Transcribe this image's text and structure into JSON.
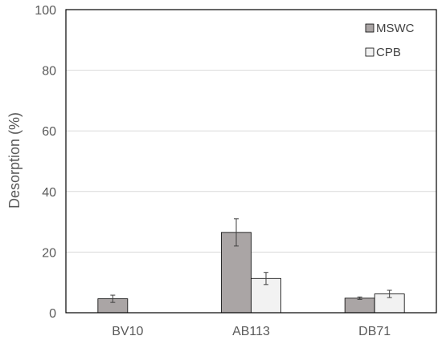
{
  "chart_data": {
    "type": "bar",
    "title": "",
    "xlabel": "",
    "ylabel": "Desorption (%)",
    "ylim": [
      0,
      100
    ],
    "yticks": [
      "0",
      "20",
      "40",
      "60",
      "80",
      "100"
    ],
    "grid": true,
    "legend_position": "top-right",
    "categories": [
      "BV10",
      "AB113",
      "DB71"
    ],
    "series": [
      {
        "name": "MSWC",
        "color": "#aaa5a5",
        "values": [
          4.6,
          26.5,
          4.8
        ],
        "errors": [
          1.2,
          4.5,
          0.4
        ]
      },
      {
        "name": "CPB",
        "color": "#f2f2f2",
        "values": [
          0,
          11.3,
          6.2
        ],
        "errors": [
          0,
          2.0,
          1.2
        ]
      }
    ]
  }
}
